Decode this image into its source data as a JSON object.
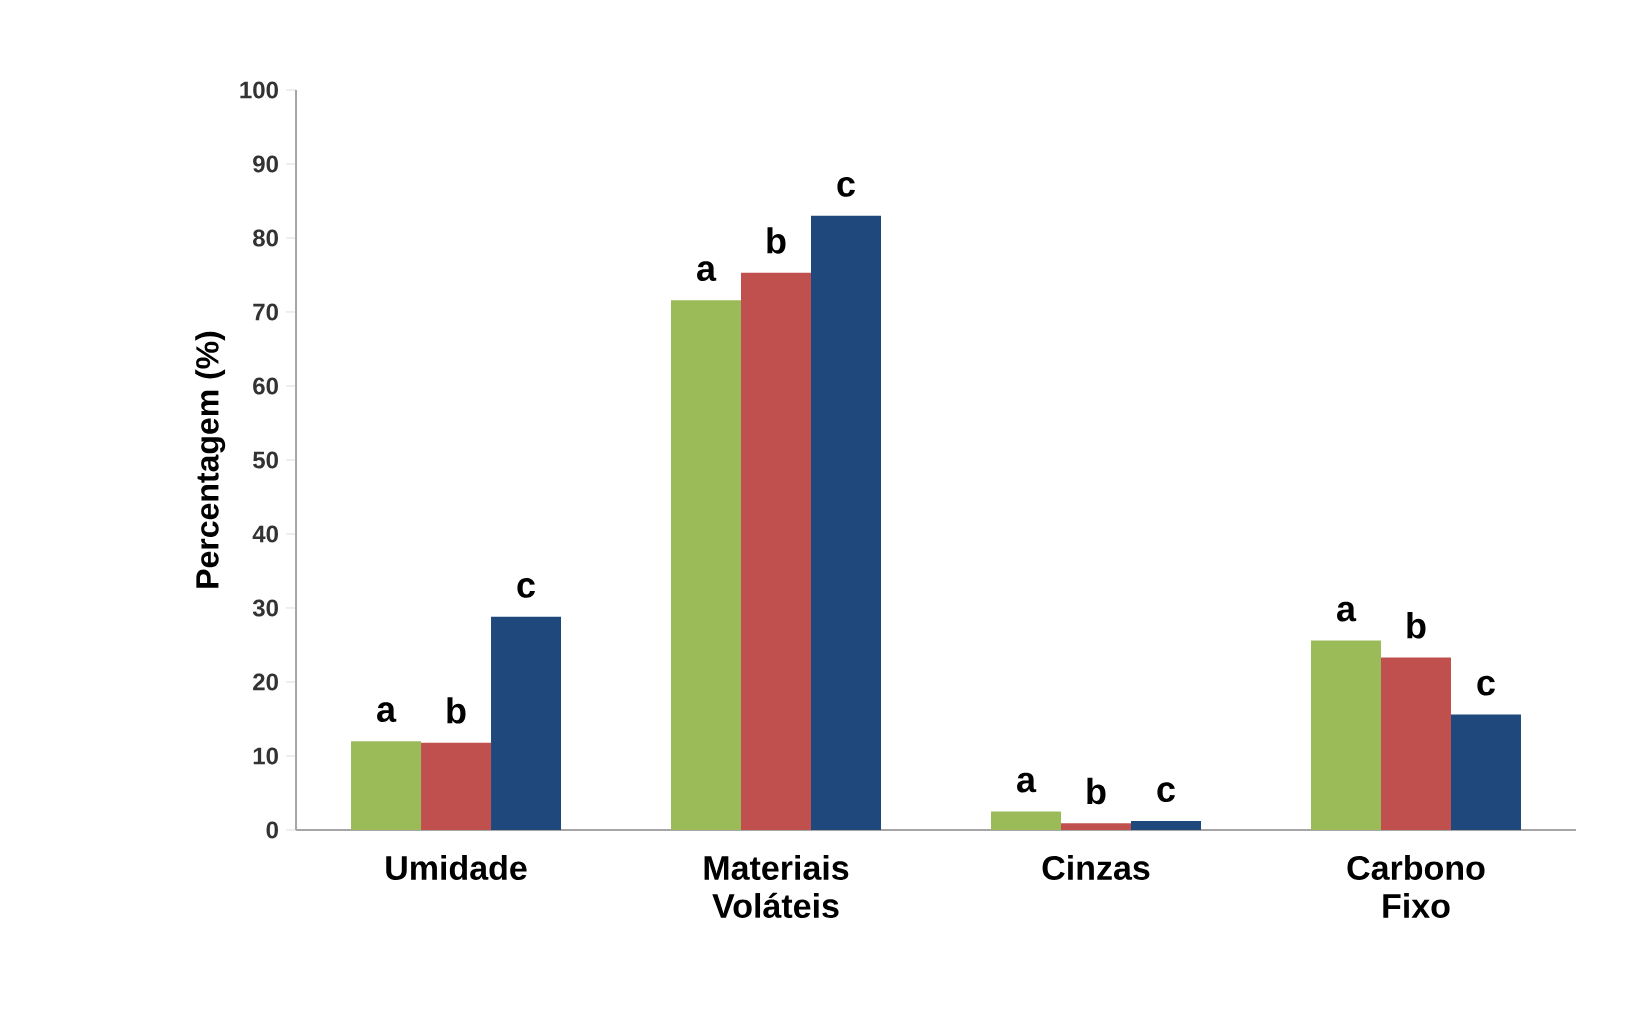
{
  "chart_data": {
    "type": "bar",
    "ylabel": "Percentagem (%)",
    "categories": [
      "Umidade",
      "Materiais Voláteis",
      "Cinzas",
      "Carbono Fixo"
    ],
    "series": [
      {
        "color": "#9bbb59",
        "values": [
          12.0,
          71.6,
          2.5,
          25.6
        ]
      },
      {
        "color": "#c0504d",
        "values": [
          11.8,
          75.3,
          0.9,
          23.3
        ]
      },
      {
        "color": "#1f497d",
        "values": [
          28.8,
          83.0,
          1.2,
          15.6
        ]
      }
    ],
    "ylim": [
      0,
      100
    ],
    "yticks": [
      0,
      10,
      20,
      30,
      40,
      50,
      60,
      70,
      80,
      90,
      100
    ],
    "annotations": [
      "a",
      "b",
      "c",
      "a",
      "b",
      "c",
      "a",
      "b",
      "c",
      "a",
      "b",
      "c"
    ]
  }
}
